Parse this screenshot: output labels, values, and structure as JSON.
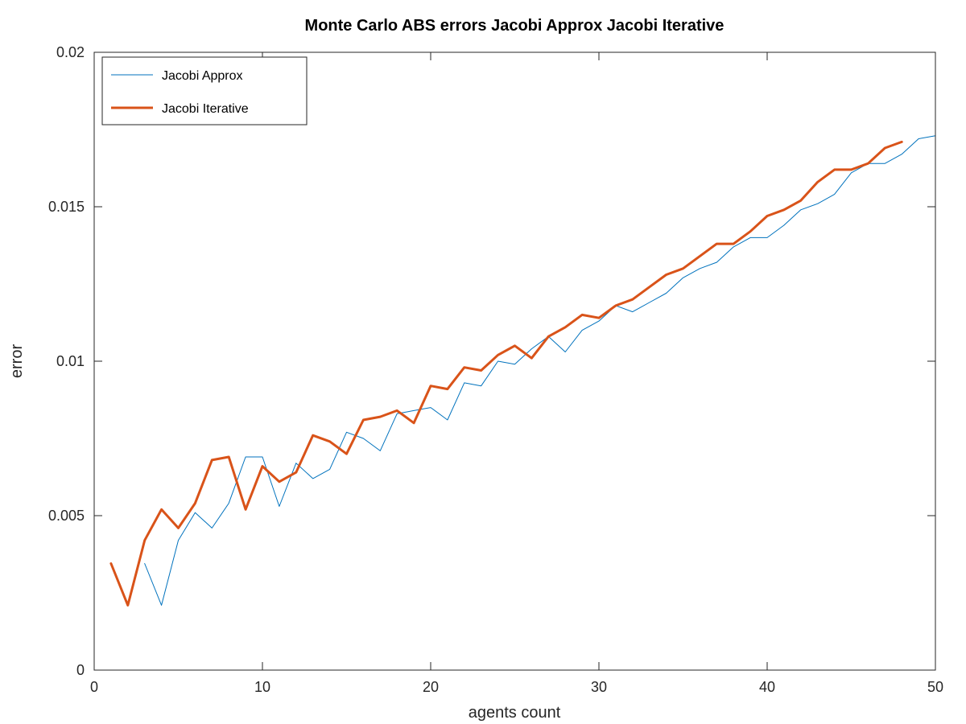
{
  "chart_data": {
    "type": "line",
    "title": "Monte Carlo ABS errors Jacobi Approx  Jacobi Iterative",
    "xlabel": "agents count",
    "ylabel": "error",
    "xlim": [
      0,
      50
    ],
    "ylim": [
      0,
      0.02
    ],
    "xticks": [
      0,
      10,
      20,
      30,
      40,
      50
    ],
    "xtick_labels": [
      "0",
      "10",
      "20",
      "30",
      "40",
      "50"
    ],
    "yticks": [
      0,
      0.005,
      0.01,
      0.015,
      0.02
    ],
    "ytick_labels": [
      "0",
      "0.005",
      "0.01",
      "0.015",
      "0.02"
    ],
    "grid": false,
    "legend_position": "top-left",
    "series": [
      {
        "name": "Jacobi Approx",
        "color": "#0072bd",
        "line_width": 1,
        "x": [
          3,
          4,
          5,
          6,
          7,
          8,
          9,
          10,
          11,
          12,
          13,
          14,
          15,
          16,
          17,
          18,
          19,
          20,
          21,
          22,
          23,
          24,
          25,
          26,
          27,
          28,
          29,
          30,
          31,
          32,
          33,
          34,
          35,
          36,
          37,
          38,
          39,
          40,
          41,
          42,
          43,
          44,
          45,
          46,
          47,
          48,
          49,
          50
        ],
        "values": [
          0.00345,
          0.0021,
          0.0042,
          0.0051,
          0.0046,
          0.0054,
          0.0069,
          0.0069,
          0.0053,
          0.0067,
          0.0062,
          0.0065,
          0.0077,
          0.0075,
          0.0071,
          0.0083,
          0.0084,
          0.0085,
          0.0081,
          0.0093,
          0.0092,
          0.01,
          0.0099,
          0.0104,
          0.0108,
          0.0103,
          0.011,
          0.0113,
          0.0118,
          0.0116,
          0.0119,
          0.0122,
          0.0127,
          0.013,
          0.0132,
          0.0137,
          0.014,
          0.014,
          0.0144,
          0.0149,
          0.0151,
          0.0154,
          0.0161,
          0.0164,
          0.0164,
          0.0167,
          0.0172,
          0.0173
        ]
      },
      {
        "name": "Jacobi Iterative",
        "color": "#d95319",
        "line_width": 3,
        "x": [
          1,
          2,
          3,
          4,
          5,
          6,
          7,
          8,
          9,
          10,
          11,
          12,
          13,
          14,
          15,
          16,
          17,
          18,
          19,
          20,
          21,
          22,
          23,
          24,
          25,
          26,
          27,
          28,
          29,
          30,
          31,
          32,
          33,
          34,
          35,
          36,
          37,
          38,
          39,
          40,
          41,
          42,
          43,
          44,
          45,
          46,
          47,
          48
        ],
        "values": [
          0.00345,
          0.0021,
          0.0042,
          0.0052,
          0.0046,
          0.0054,
          0.0068,
          0.0069,
          0.0052,
          0.0066,
          0.0061,
          0.0064,
          0.0076,
          0.0074,
          0.007,
          0.0081,
          0.0082,
          0.0084,
          0.008,
          0.0092,
          0.0091,
          0.0098,
          0.0097,
          0.0102,
          0.0105,
          0.0101,
          0.0108,
          0.0111,
          0.0115,
          0.0114,
          0.0118,
          0.012,
          0.0124,
          0.0128,
          0.013,
          0.0134,
          0.0138,
          0.0138,
          0.0142,
          0.0147,
          0.0149,
          0.0152,
          0.0158,
          0.0162,
          0.0162,
          0.0164,
          0.0169,
          0.0171
        ]
      }
    ]
  }
}
